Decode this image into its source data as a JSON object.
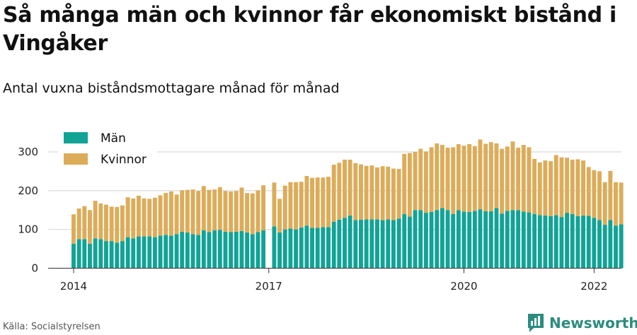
{
  "header": {
    "title": "Så många män och kvinnor får ekonomiskt bistånd i Vingåker",
    "subtitle": "Antal vuxna biståndsmottagare månad för månad"
  },
  "footer": {
    "source": "Källa: Socialstyrelsen",
    "brand": "Newsworthy"
  },
  "colors": {
    "men": "#11a396",
    "women": "#dcac59",
    "grid": "#dddddd",
    "brand": "#2b8c7e"
  },
  "icons": {
    "brand_logo": "newsworthy-logo-icon"
  },
  "chart_data": {
    "type": "bar",
    "stacked": true,
    "legend_position": "top-left",
    "grid": true,
    "ylim": [
      0,
      340
    ],
    "yticks": [
      0,
      100,
      200,
      300
    ],
    "xticks": [
      "2014",
      "2017",
      "2020",
      "2022"
    ],
    "x_start": "2014-01",
    "series": [
      {
        "name": "Män",
        "values": [
          63,
          75,
          75,
          63,
          77,
          75,
          70,
          70,
          66,
          70,
          80,
          77,
          82,
          82,
          82,
          80,
          84,
          86,
          84,
          88,
          94,
          92,
          88,
          86,
          98,
          93,
          98,
          99,
          94,
          93,
          94,
          96,
          92,
          88,
          93,
          98,
          null,
          108,
          92,
          100,
          102,
          100,
          105,
          110,
          104,
          104,
          106,
          106,
          120,
          125,
          130,
          136,
          124,
          125,
          126,
          126,
          126,
          124,
          126,
          124,
          128,
          140,
          133,
          150,
          150,
          143,
          145,
          150,
          155,
          150,
          140,
          150,
          146,
          145,
          148,
          152,
          147,
          147,
          155,
          141,
          148,
          150,
          150,
          146,
          144,
          140,
          137,
          136,
          134,
          137,
          132,
          143,
          140,
          134,
          136,
          135,
          130,
          124,
          112,
          124,
          110,
          113
        ]
      },
      {
        "name": "Kvinnor",
        "values": [
          76,
          79,
          85,
          87,
          97,
          92,
          94,
          89,
          92,
          92,
          103,
          103,
          105,
          98,
          97,
          102,
          104,
          108,
          114,
          102,
          107,
          110,
          115,
          113,
          114,
          109,
          105,
          110,
          105,
          105,
          105,
          112,
          102,
          105,
          108,
          116,
          null,
          113,
          87,
          113,
          120,
          122,
          118,
          128,
          129,
          130,
          128,
          130,
          147,
          147,
          150,
          144,
          147,
          143,
          138,
          139,
          134,
          139,
          136,
          133,
          128,
          155,
          164,
          150,
          158,
          158,
          167,
          172,
          163,
          161,
          172,
          170,
          170,
          175,
          167,
          180,
          174,
          178,
          167,
          167,
          166,
          177,
          161,
          172,
          168,
          142,
          136,
          142,
          142,
          155,
          154,
          142,
          140,
          147,
          142,
          126,
          123,
          126,
          110,
          127,
          112,
          108
        ]
      }
    ]
  }
}
